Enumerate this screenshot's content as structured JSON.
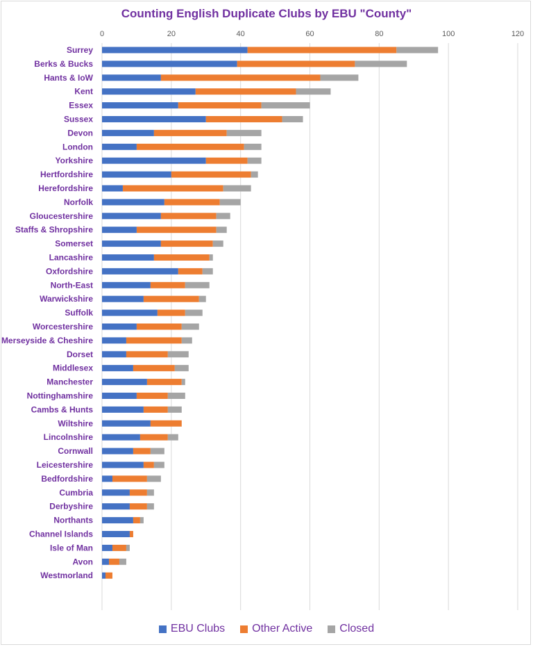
{
  "chart_data": {
    "type": "bar",
    "orientation": "horizontal",
    "stacked": true,
    "title": "Counting English Duplicate Clubs by EBU \"County\"",
    "xlim": [
      0,
      120
    ],
    "xticks": [
      "0",
      "20",
      "40",
      "60",
      "80",
      "100",
      "120"
    ],
    "grid": true,
    "legend_position": "bottom",
    "categories": [
      "Surrey",
      "Berks & Bucks",
      "Hants & IoW",
      "Kent",
      "Essex",
      "Sussex",
      "Devon",
      "London",
      "Yorkshire",
      "Hertfordshire",
      "Herefordshire",
      "Norfolk",
      "Gloucestershire",
      "Staffs & Shropshire",
      "Somerset",
      "Lancashire",
      "Oxfordshire",
      "North-East",
      "Warwickshire",
      "Suffolk",
      "Worcestershire",
      "Merseyside & Cheshire",
      "Dorset",
      "Middlesex",
      "Manchester",
      "Nottinghamshire",
      "Cambs & Hunts",
      "Wiltshire",
      "Lincolnshire",
      "Cornwall",
      "Leicestershire",
      "Bedfordshire",
      "Cumbria",
      "Derbyshire",
      "Northants",
      "Channel Islands",
      "Isle of Man",
      "Avon",
      "Westmorland"
    ],
    "series": [
      {
        "name": "EBU Clubs",
        "color": "#4472c4",
        "values": [
          42,
          39,
          17,
          27,
          22,
          30,
          15,
          10,
          30,
          20,
          6,
          18,
          17,
          10,
          17,
          15,
          22,
          14,
          12,
          16,
          10,
          7,
          7,
          9,
          13,
          10,
          12,
          14,
          11,
          9,
          12,
          3,
          8,
          8,
          9,
          8,
          3,
          2,
          1
        ]
      },
      {
        "name": "Other Active",
        "color": "#ed7d31",
        "values": [
          43,
          34,
          46,
          29,
          24,
          22,
          21,
          31,
          12,
          23,
          29,
          16,
          16,
          23,
          15,
          16,
          7,
          10,
          16,
          8,
          13,
          16,
          12,
          12,
          10,
          9,
          7,
          9,
          8,
          5,
          3,
          10,
          5,
          5,
          2,
          1,
          4,
          3,
          2
        ]
      },
      {
        "name": "Closed",
        "color": "#a5a5a5",
        "values": [
          12,
          15,
          11,
          10,
          14,
          6,
          10,
          5,
          4,
          2,
          8,
          6,
          4,
          3,
          3,
          1,
          3,
          7,
          2,
          5,
          5,
          3,
          6,
          4,
          1,
          5,
          4,
          0,
          3,
          4,
          3,
          4,
          2,
          2,
          1,
          0,
          1,
          2,
          0
        ]
      }
    ]
  }
}
